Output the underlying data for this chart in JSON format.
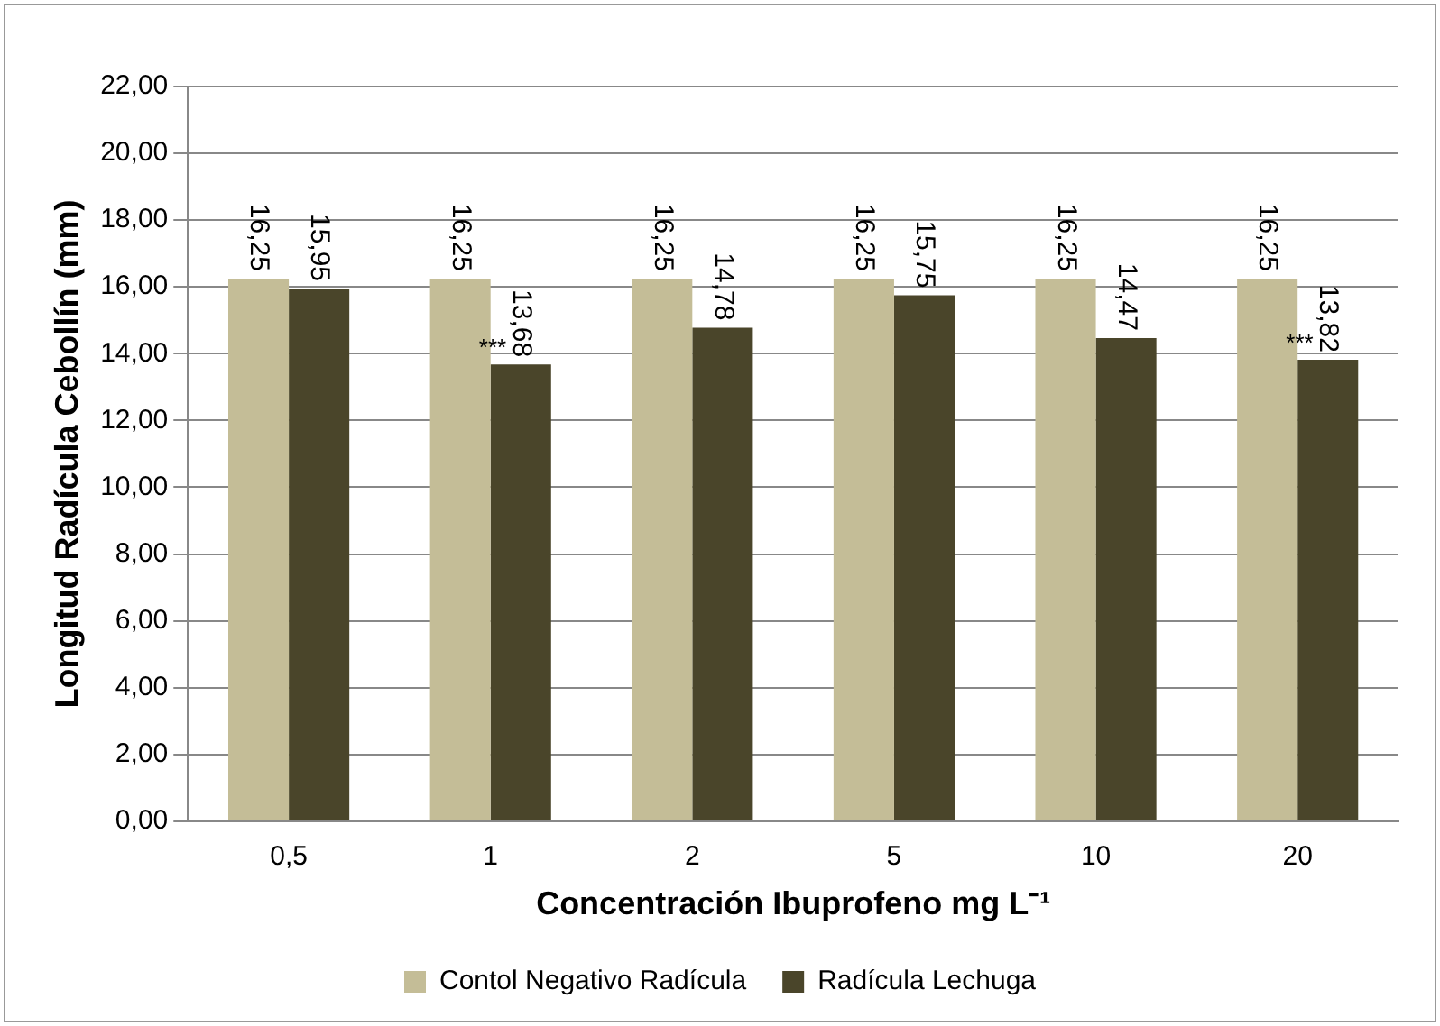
{
  "chart_data": {
    "type": "bar",
    "xlabel": "Concentración Ibuprofeno mg L⁻¹",
    "ylabel": "Longitud Radícula Cebollín (mm)",
    "categories": [
      "0,5",
      "1",
      "2",
      "5",
      "10",
      "20"
    ],
    "series": [
      {
        "name": "Contol Negativo Radícula",
        "color": "#c4bd97",
        "values": [
          16.25,
          16.25,
          16.25,
          16.25,
          16.25,
          16.25
        ],
        "value_labels": [
          "16,25",
          "16,25",
          "16,25",
          "16,25",
          "16,25",
          "16,25"
        ]
      },
      {
        "name": "Radícula Lechuga",
        "color": "#4a452a",
        "values": [
          15.95,
          13.68,
          14.78,
          15.75,
          14.47,
          13.82
        ],
        "value_labels": [
          "15,95",
          "13,68",
          "14,78",
          "15,75",
          "14,47",
          "13,82"
        ]
      }
    ],
    "ylim": [
      0,
      22
    ],
    "yticks": [
      {
        "value": 0,
        "label": "0,00"
      },
      {
        "value": 2,
        "label": "2,00"
      },
      {
        "value": 4,
        "label": "4,00"
      },
      {
        "value": 6,
        "label": "6,00"
      },
      {
        "value": 8,
        "label": "8,00"
      },
      {
        "value": 10,
        "label": "10,00"
      },
      {
        "value": 12,
        "label": "12,00"
      },
      {
        "value": 14,
        "label": "14,00"
      },
      {
        "value": 16,
        "label": "16,00"
      },
      {
        "value": 18,
        "label": "18,00"
      },
      {
        "value": 20,
        "label": "20,00"
      },
      {
        "value": 22,
        "label": "22,00"
      }
    ],
    "grid": "y",
    "legend": "bottom",
    "annotations": [
      {
        "text": "***",
        "x": "1",
        "y": 13.68
      },
      {
        "text": "***",
        "x": "20",
        "y": 13.82
      }
    ]
  }
}
